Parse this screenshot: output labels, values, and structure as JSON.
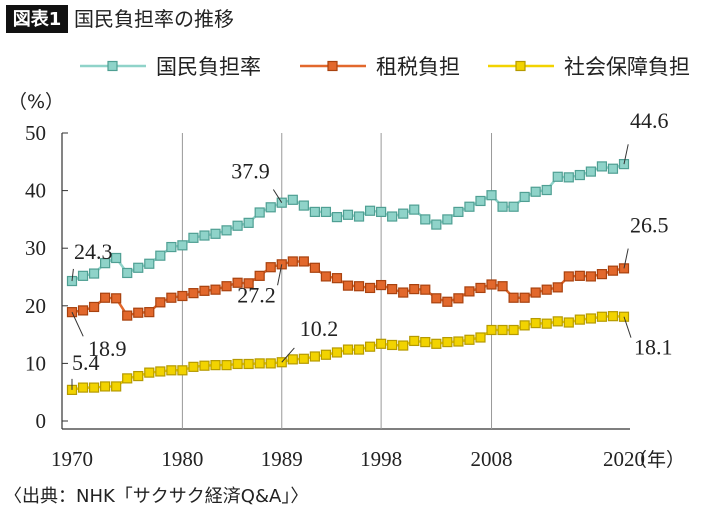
{
  "chart_data": {
    "type": "line",
    "badge": "図表1",
    "title": "国民負担率の推移",
    "y_label": "（%）",
    "x_unit": "（年）",
    "source": "〈出典：NHK「サクサク経済Q&A」〉",
    "x": [
      1970,
      1971,
      1972,
      1973,
      1974,
      1975,
      1976,
      1977,
      1978,
      1979,
      1980,
      1981,
      1982,
      1983,
      1984,
      1985,
      1986,
      1987,
      1988,
      1989,
      1990,
      1991,
      1992,
      1993,
      1994,
      1995,
      1996,
      1997,
      1998,
      1999,
      2000,
      2001,
      2002,
      2003,
      2004,
      2005,
      2006,
      2007,
      2008,
      2009,
      2010,
      2011,
      2012,
      2013,
      2014,
      2015,
      2016,
      2017,
      2018,
      2019,
      2020
    ],
    "series": [
      {
        "name": "国民負担率",
        "color": "#8fd3c9",
        "values": [
          24.3,
          25.2,
          25.6,
          27.4,
          28.3,
          25.7,
          26.6,
          27.3,
          28.7,
          30.2,
          30.5,
          31.8,
          32.2,
          32.5,
          33.1,
          33.9,
          34.4,
          36.2,
          37.1,
          37.9,
          38.4,
          37.4,
          36.3,
          36.3,
          35.4,
          35.8,
          35.5,
          36.5,
          36.3,
          35.5,
          36.0,
          36.7,
          35.0,
          34.1,
          35.0,
          36.3,
          37.2,
          38.2,
          39.2,
          37.2,
          37.2,
          38.9,
          39.8,
          40.1,
          42.4,
          42.3,
          42.7,
          43.3,
          44.2,
          43.8,
          44.6
        ]
      },
      {
        "name": "租税負担",
        "color": "#e2682c",
        "values": [
          18.9,
          19.2,
          19.8,
          21.4,
          21.3,
          18.3,
          18.8,
          18.9,
          20.6,
          21.4,
          21.7,
          22.2,
          22.6,
          22.8,
          23.4,
          24.0,
          23.9,
          25.2,
          26.7,
          27.2,
          27.7,
          27.7,
          26.6,
          25.1,
          24.8,
          23.5,
          23.4,
          23.1,
          23.6,
          22.9,
          22.3,
          22.9,
          22.8,
          21.3,
          20.7,
          21.3,
          22.5,
          23.1,
          23.7,
          23.4,
          21.4,
          21.4,
          22.3,
          22.8,
          23.2,
          25.1,
          25.2,
          25.1,
          25.5,
          26.1,
          26.5
        ]
      },
      {
        "name": "社会保障負担",
        "color": "#f2d300",
        "values": [
          5.4,
          5.8,
          5.8,
          6.0,
          6.0,
          7.4,
          7.8,
          8.4,
          8.6,
          8.8,
          8.8,
          9.4,
          9.6,
          9.7,
          9.7,
          9.9,
          9.9,
          10.0,
          10.0,
          10.2,
          10.7,
          10.8,
          11.2,
          11.5,
          11.9,
          12.4,
          12.4,
          12.9,
          13.4,
          13.2,
          13.1,
          13.9,
          13.7,
          13.4,
          13.7,
          13.8,
          14.1,
          14.5,
          15.8,
          15.8,
          15.8,
          16.6,
          17.0,
          16.9,
          17.3,
          17.1,
          17.6,
          17.8,
          18.1,
          18.2,
          18.1
        ]
      }
    ],
    "xlim": [
      1970,
      2020
    ],
    "xticks": [
      1970,
      1980,
      1989,
      1998,
      2008,
      2020
    ],
    "ylim": [
      0,
      50
    ],
    "yticks": [
      0,
      10,
      20,
      30,
      40,
      50
    ],
    "grid": true
  }
}
